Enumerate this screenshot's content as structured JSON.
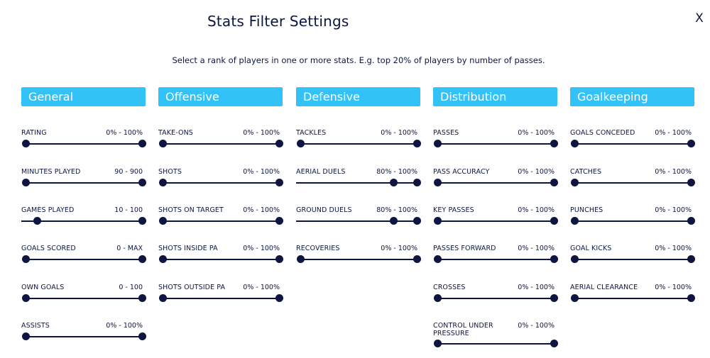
{
  "header": {
    "title": "Stats Filter Settings",
    "close_label": "X",
    "subtitle": "Select a rank of players in one or more stats. E.g. top 20% of players by number of passes."
  },
  "colors": {
    "accent": "#33c2f7",
    "text": "#0d1540",
    "slider": "#0d1540"
  },
  "columns": [
    {
      "title": "General",
      "stats": [
        {
          "label": "RATING",
          "range": "0% - 100%",
          "min": 0,
          "max": 1
        },
        {
          "label": "MINUTES PLAYED",
          "range": "90 - 900",
          "min": 0,
          "max": 1
        },
        {
          "label": "GAMES PLAYED",
          "range": "10 - 100",
          "min": 0.1,
          "max": 1
        },
        {
          "label": "GOALS SCORED",
          "range": "0 - MAX",
          "min": 0,
          "max": 1
        },
        {
          "label": "OWN GOALS",
          "range": "0 - 100",
          "min": 0,
          "max": 1
        },
        {
          "label": "ASSISTS",
          "range": "0% - 100%",
          "min": 0,
          "max": 1
        }
      ]
    },
    {
      "title": "Offensive",
      "stats": [
        {
          "label": "TAKE-ONS",
          "range": "0% - 100%",
          "min": 0,
          "max": 1
        },
        {
          "label": "SHOTS",
          "range": "0% - 100%",
          "min": 0,
          "max": 1
        },
        {
          "label": "SHOTS ON TARGET",
          "range": "0% - 100%",
          "min": 0,
          "max": 1
        },
        {
          "label": "SHOTS INSIDE PA",
          "range": "0% - 100%",
          "min": 0,
          "max": 1
        },
        {
          "label": "SHOTS OUTSIDE PA",
          "range": "0% - 100%",
          "min": 0,
          "max": 1
        }
      ]
    },
    {
      "title": "Defensive",
      "stats": [
        {
          "label": "TACKLES",
          "range": "0% - 100%",
          "min": 0,
          "max": 1
        },
        {
          "label": "AERIAL DUELS",
          "range": "80% - 100%",
          "min": 0.8,
          "max": 1
        },
        {
          "label": "GROUND DUELS",
          "range": "80% - 100%",
          "min": 0.8,
          "max": 1
        },
        {
          "label": "RECOVERIES",
          "range": "0% - 100%",
          "min": 0,
          "max": 1
        }
      ]
    },
    {
      "title": "Distribution",
      "stats": [
        {
          "label": "PASSES",
          "range": "0% - 100%",
          "min": 0,
          "max": 1
        },
        {
          "label": "PASS ACCURACY",
          "range": "0% - 100%",
          "min": 0,
          "max": 1
        },
        {
          "label": "KEY PASSES",
          "range": "0% - 100%",
          "min": 0,
          "max": 1
        },
        {
          "label": "PASSES FORWARD",
          "range": "0% - 100%",
          "min": 0,
          "max": 1
        },
        {
          "label": "CROSSES",
          "range": "0% - 100%",
          "min": 0,
          "max": 1
        },
        {
          "label": "CONTROL UNDER PRESSURE",
          "range": "0% - 100%",
          "min": 0,
          "max": 1
        }
      ]
    },
    {
      "title": "Goalkeeping",
      "stats": [
        {
          "label": "GOALS CONCEDED",
          "range": "0% - 100%",
          "min": 0,
          "max": 1
        },
        {
          "label": "CATCHES",
          "range": "0% - 100%",
          "min": 0,
          "max": 1
        },
        {
          "label": "PUNCHES",
          "range": "0% - 100%",
          "min": 0,
          "max": 1
        },
        {
          "label": "GOAL KICKS",
          "range": "0% - 100%",
          "min": 0,
          "max": 1
        },
        {
          "label": "AERIAL CLEARANCE",
          "range": "0% - 100%",
          "min": 0,
          "max": 1
        }
      ]
    }
  ]
}
